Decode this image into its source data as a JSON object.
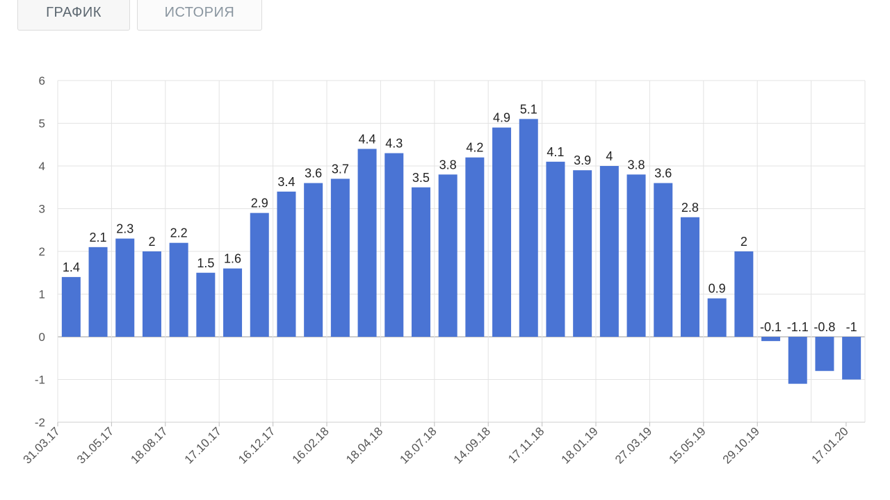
{
  "tabs": [
    {
      "label": "ГРАФИК",
      "active": true
    },
    {
      "label": "ИСТОРИЯ",
      "active": false
    }
  ],
  "chart_data": {
    "type": "bar",
    "title": "",
    "xlabel": "",
    "ylabel": "",
    "ylim": [
      -2,
      6
    ],
    "y_ticks": [
      "6",
      "5",
      "4",
      "3",
      "2",
      "1",
      "0",
      "-1",
      "-2"
    ],
    "grid": true,
    "bar_color": "#4a74d4",
    "values": [
      1.4,
      2.1,
      2.3,
      2,
      2.2,
      1.5,
      1.6,
      2.9,
      3.4,
      3.6,
      3.7,
      4.4,
      4.3,
      3.5,
      3.8,
      4.2,
      4.9,
      5.1,
      4.1,
      3.9,
      4,
      3.8,
      3.6,
      2.8,
      0.9,
      2,
      -0.1,
      -1.1,
      -0.8,
      -1
    ],
    "x_tick_labels": [
      "31.03.17",
      "31.05.17",
      "18.08.17",
      "17.10.17",
      "16.12.17",
      "16.02.18",
      "18.04.18",
      "18.07.18",
      "14.09.18",
      "17.11.18",
      "18.01.19",
      "27.03.19",
      "15.05.19",
      "29.10.19",
      "17.01.20"
    ]
  }
}
